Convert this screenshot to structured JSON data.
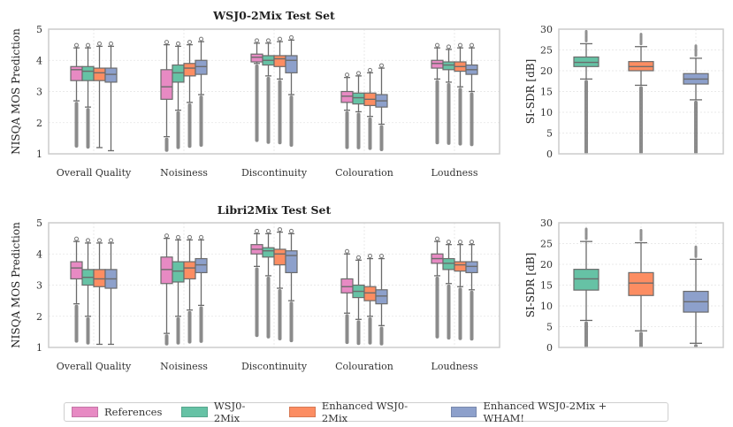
{
  "colors": {
    "References": "#e78ac3",
    "WSJ0-2Mix": "#66c2a5",
    "Enhanced WSJ0-2Mix": "#fc8d62",
    "Enhanced WSJ0-2Mix + WHAM!": "#8da0cb"
  },
  "legend": [
    "References",
    "WSJ0-2Mix",
    "Enhanced WSJ0-2Mix",
    "Enhanced WSJ0-2Mix + WHAM!"
  ],
  "chart_data": [
    {
      "type": "box",
      "title": "WSJ0-2Mix Test Set",
      "ylabel": "NISQA MOS Prediction",
      "ylim": [
        1,
        5
      ],
      "yticks": [
        "1",
        "2",
        "3",
        "4",
        "5"
      ],
      "categories": [
        "Overall Quality",
        "Noisiness",
        "Discontinuity",
        "Colouration",
        "Loudness"
      ],
      "series": [
        {
          "name": "References",
          "boxes": [
            [
              2.7,
              3.35,
              3.7,
              3.8,
              4.4
            ],
            [
              1.55,
              2.75,
              3.15,
              3.7,
              4.5
            ],
            [
              3.9,
              3.95,
              4.1,
              4.2,
              4.55
            ],
            [
              2.4,
              2.65,
              2.85,
              3.0,
              3.45
            ],
            [
              3.4,
              3.75,
              3.9,
              4.0,
              4.4
            ]
          ]
        },
        {
          "name": "WSJ0-2Mix",
          "boxes": [
            [
              2.5,
              3.35,
              3.65,
              3.8,
              4.4
            ],
            [
              2.4,
              3.3,
              3.6,
              3.85,
              4.45
            ],
            [
              3.5,
              3.85,
              4.0,
              4.15,
              4.55
            ],
            [
              2.35,
              2.6,
              2.8,
              2.95,
              3.5
            ],
            [
              3.3,
              3.7,
              3.85,
              3.95,
              4.35
            ]
          ]
        },
        {
          "name": "Enhanced WSJ0-2Mix",
          "boxes": [
            [
              1.2,
              3.35,
              3.6,
              3.75,
              4.45
            ],
            [
              2.65,
              3.5,
              3.75,
              3.9,
              4.5
            ],
            [
              3.4,
              3.8,
              4.05,
              4.15,
              4.6
            ],
            [
              2.2,
              2.55,
              2.75,
              2.95,
              3.6
            ],
            [
              3.15,
              3.65,
              3.8,
              3.95,
              4.4
            ]
          ]
        },
        {
          "name": "Enhanced WSJ0-2Mix + WHAM!",
          "boxes": [
            [
              1.1,
              3.3,
              3.55,
              3.75,
              4.45
            ],
            [
              2.9,
              3.55,
              3.8,
              4.0,
              4.6
            ],
            [
              2.9,
              3.6,
              4.0,
              4.15,
              4.65
            ],
            [
              1.95,
              2.5,
              2.7,
              2.9,
              3.75
            ],
            [
              3.0,
              3.55,
              3.7,
              3.85,
              4.4
            ]
          ]
        }
      ]
    },
    {
      "type": "box",
      "title": "",
      "ylabel": "SI-SDR [dB]",
      "ylim": [
        0,
        30
      ],
      "yticks": [
        "0",
        "5",
        "10",
        "15",
        "20",
        "25",
        "30"
      ],
      "categories": [
        "WSJ0-2Mix",
        "Enhanced WSJ0-2Mix",
        "Enhanced WSJ0-2Mix + WHAM!"
      ],
      "values": [
        [
          18,
          21,
          22,
          23.3,
          26.5
        ],
        [
          16.5,
          20,
          21,
          22.2,
          25.8
        ],
        [
          13,
          16.8,
          18,
          19.3,
          23
        ]
      ]
    },
    {
      "type": "box",
      "title": "Libri2Mix Test Set",
      "ylabel": "NISQA MOS Prediction",
      "ylim": [
        1,
        5
      ],
      "yticks": [
        "1",
        "2",
        "3",
        "4",
        "5"
      ],
      "categories": [
        "Overall Quality",
        "Noisiness",
        "Discontinuity",
        "Colouration",
        "Loudness"
      ],
      "series": [
        {
          "name": "References",
          "boxes": [
            [
              2.4,
              3.2,
              3.55,
              3.75,
              4.4
            ],
            [
              1.45,
              3.05,
              3.5,
              3.9,
              4.5
            ],
            [
              3.6,
              4.0,
              4.15,
              4.3,
              4.65
            ],
            [
              2.1,
              2.75,
              2.95,
              3.2,
              4.0
            ],
            [
              3.3,
              3.7,
              3.85,
              4.0,
              4.4
            ]
          ]
        },
        {
          "name": "WSJ0-2Mix",
          "boxes": [
            [
              2.0,
              3.0,
              3.25,
              3.5,
              4.35
            ],
            [
              2.0,
              3.1,
              3.45,
              3.75,
              4.45
            ],
            [
              3.3,
              3.9,
              4.1,
              4.2,
              4.65
            ],
            [
              1.9,
              2.6,
              2.8,
              3.0,
              3.8
            ],
            [
              3.05,
              3.5,
              3.7,
              3.85,
              4.3
            ]
          ]
        },
        {
          "name": "Enhanced WSJ0-2Mix",
          "boxes": [
            [
              1.1,
              2.95,
              3.2,
              3.5,
              4.35
            ],
            [
              2.2,
              3.2,
              3.55,
              3.75,
              4.45
            ],
            [
              2.9,
              3.65,
              4.0,
              4.15,
              4.7
            ],
            [
              2.0,
              2.5,
              2.75,
              2.95,
              3.85
            ],
            [
              2.95,
              3.45,
              3.65,
              3.75,
              4.3
            ]
          ]
        },
        {
          "name": "Enhanced WSJ0-2Mix + WHAM!",
          "boxes": [
            [
              1.1,
              2.9,
              3.2,
              3.5,
              4.35
            ],
            [
              2.35,
              3.4,
              3.65,
              3.85,
              4.45
            ],
            [
              2.5,
              3.4,
              3.95,
              4.1,
              4.65
            ],
            [
              1.7,
              2.4,
              2.65,
              2.85,
              3.85
            ],
            [
              2.85,
              3.4,
              3.6,
              3.75,
              4.3
            ]
          ]
        }
      ]
    },
    {
      "type": "box",
      "title": "",
      "ylabel": "SI-SDR [dB]",
      "ylim": [
        0,
        30
      ],
      "yticks": [
        "0",
        "5",
        "10",
        "15",
        "20",
        "25",
        "30"
      ],
      "categories": [
        "WSJ0-2Mix",
        "Enhanced WSJ0-2Mix",
        "Enhanced WSJ0-2Mix + WHAM!"
      ],
      "values": [
        [
          6.5,
          13.8,
          16.5,
          18.8,
          25.5
        ],
        [
          4,
          12.5,
          15.5,
          18,
          25.2
        ],
        [
          1,
          8.5,
          11,
          13.5,
          21.2
        ]
      ]
    }
  ]
}
